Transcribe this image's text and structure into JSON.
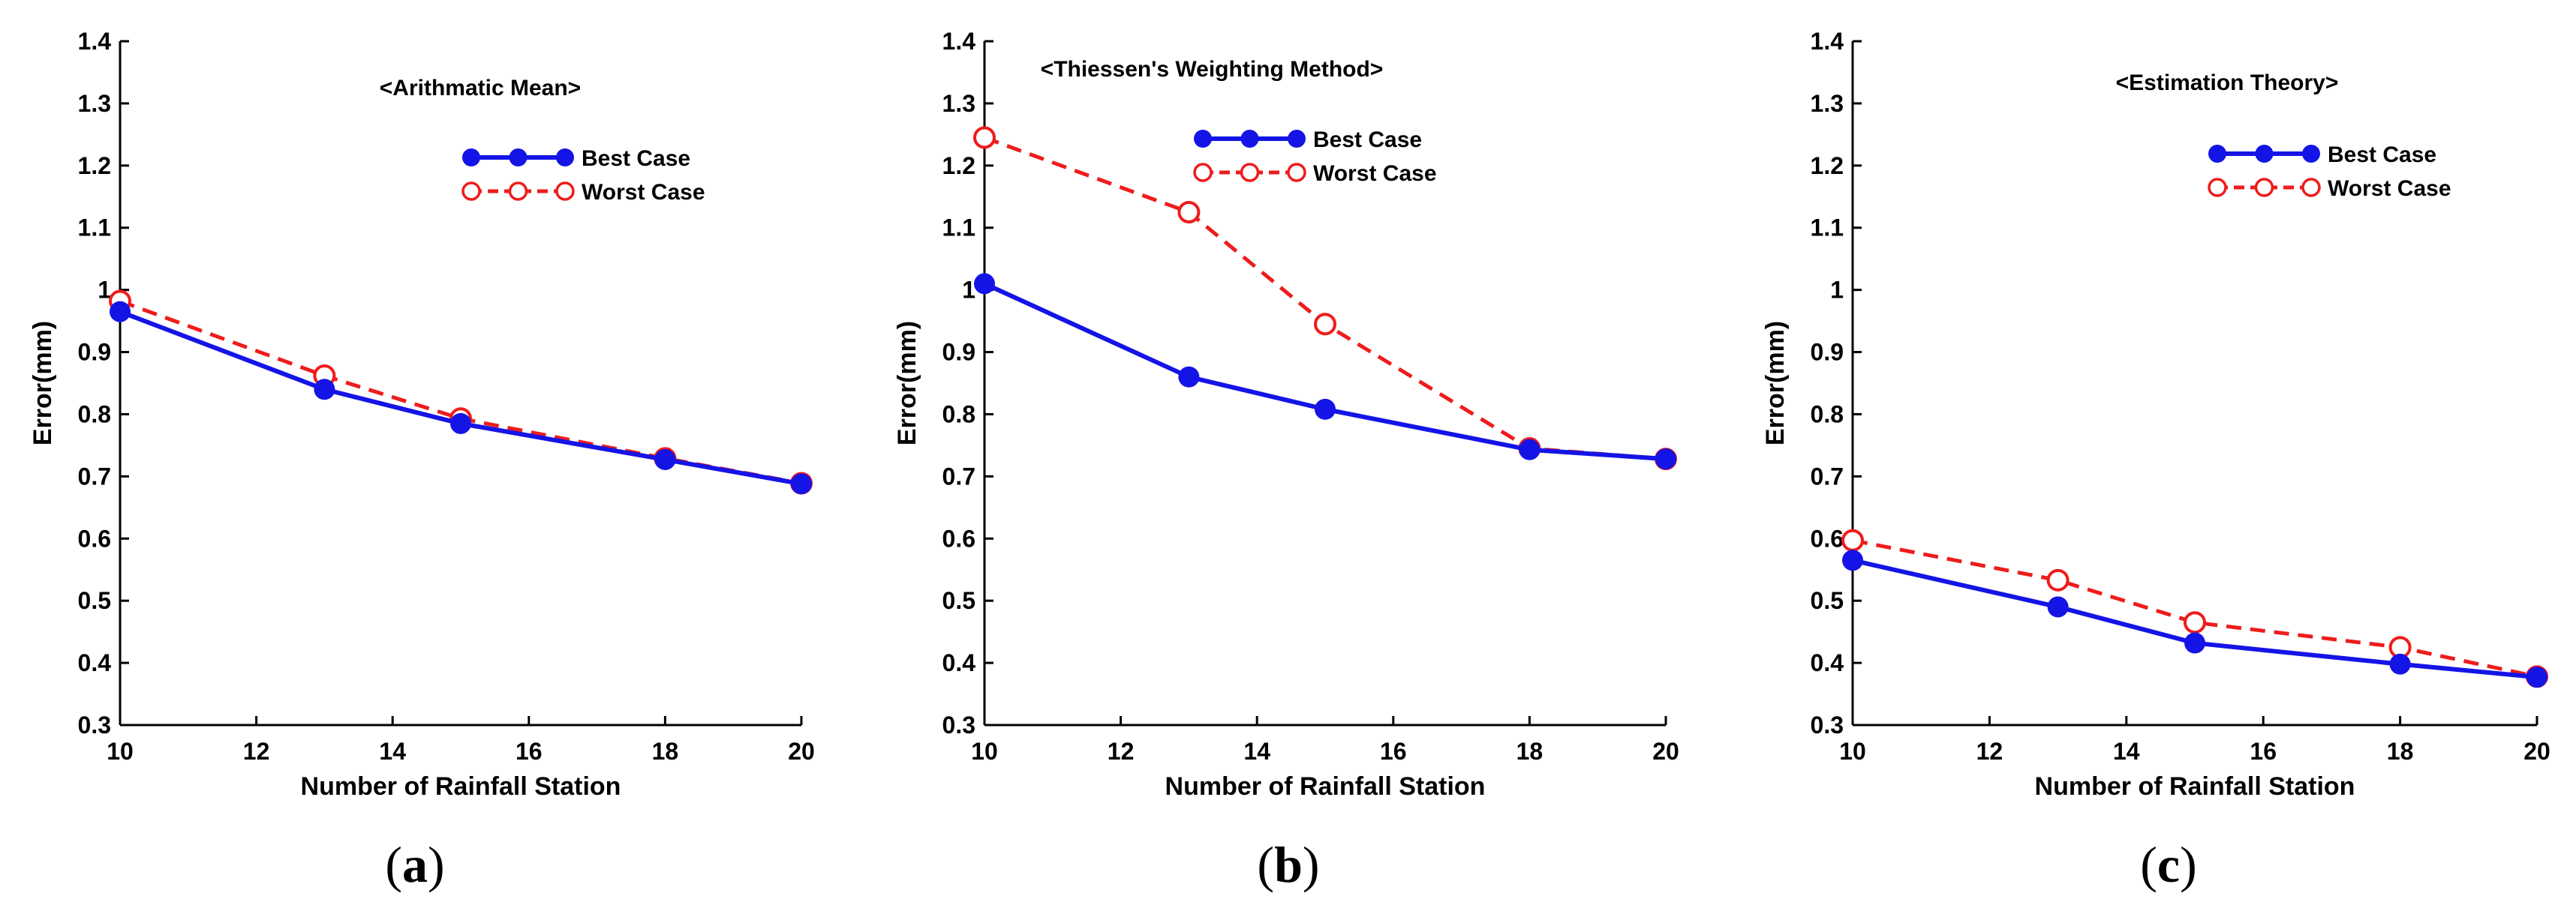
{
  "colors": {
    "best": "#1414e6",
    "worst": "#ee1c1c",
    "axis": "#000000"
  },
  "chart_data": [
    {
      "type": "line",
      "panel_caption": "a",
      "legend_title": "<Arithmatic Mean>",
      "xlabel": "Number of Rainfall Station",
      "ylabel": "Error(mm)",
      "xlim": [
        10,
        20
      ],
      "ylim": [
        0.3,
        1.4
      ],
      "xticks": [
        "10",
        "12",
        "14",
        "16",
        "18",
        "20"
      ],
      "yticks": [
        "0.3",
        "0.4",
        "0.5",
        "0.6",
        "0.7",
        "0.8",
        "0.9",
        "1",
        "1.1",
        "1.2",
        "1.3",
        "1.4"
      ],
      "legend": [
        "Best Case",
        "Worst Case"
      ],
      "series": [
        {
          "name": "Best Case",
          "x": [
            10,
            13,
            15,
            18,
            20
          ],
          "values": [
            0.965,
            0.84,
            0.785,
            0.727,
            0.688
          ]
        },
        {
          "name": "Worst Case",
          "x": [
            10,
            13,
            15,
            18,
            20
          ],
          "values": [
            0.982,
            0.862,
            0.793,
            0.729,
            0.689
          ]
        }
      ]
    },
    {
      "type": "line",
      "panel_caption": "b",
      "legend_title": "<Thiessen's Weighting Method>",
      "xlabel": "Number of Rainfall Station",
      "ylabel": "Error(mm)",
      "xlim": [
        10,
        20
      ],
      "ylim": [
        0.3,
        1.4
      ],
      "xticks": [
        "10",
        "12",
        "14",
        "16",
        "18",
        "20"
      ],
      "yticks": [
        "0.3",
        "0.4",
        "0.5",
        "0.6",
        "0.7",
        "0.8",
        "0.9",
        "1",
        "1.1",
        "1.2",
        "1.3",
        "1.4"
      ],
      "legend": [
        "Best Case",
        "Worst Case"
      ],
      "series": [
        {
          "name": "Best Case",
          "x": [
            10,
            13,
            15,
            18,
            20
          ],
          "values": [
            1.01,
            0.86,
            0.808,
            0.743,
            0.728
          ]
        },
        {
          "name": "Worst Case",
          "x": [
            10,
            13,
            15,
            18,
            20
          ],
          "values": [
            1.245,
            1.125,
            0.945,
            0.745,
            0.728
          ]
        }
      ]
    },
    {
      "type": "line",
      "panel_caption": "c",
      "legend_title": "<Estimation Theory>",
      "xlabel": "Number of Rainfall Station",
      "ylabel": "Error(mm)",
      "xlim": [
        10,
        20
      ],
      "ylim": [
        0.3,
        1.4
      ],
      "xticks": [
        "10",
        "12",
        "14",
        "16",
        "18",
        "20"
      ],
      "yticks": [
        "0.3",
        "0.4",
        "0.5",
        "0.6",
        "0.7",
        "0.8",
        "0.9",
        "1",
        "1.1",
        "1.2",
        "1.3",
        "1.4"
      ],
      "legend": [
        "Best Case",
        "Worst Case"
      ],
      "series": [
        {
          "name": "Best Case",
          "x": [
            10,
            13,
            15,
            18,
            20
          ],
          "values": [
            0.565,
            0.49,
            0.432,
            0.398,
            0.377
          ]
        },
        {
          "name": "Worst Case",
          "x": [
            10,
            13,
            15,
            18,
            20
          ],
          "values": [
            0.597,
            0.533,
            0.465,
            0.425,
            0.378
          ]
        }
      ]
    }
  ]
}
